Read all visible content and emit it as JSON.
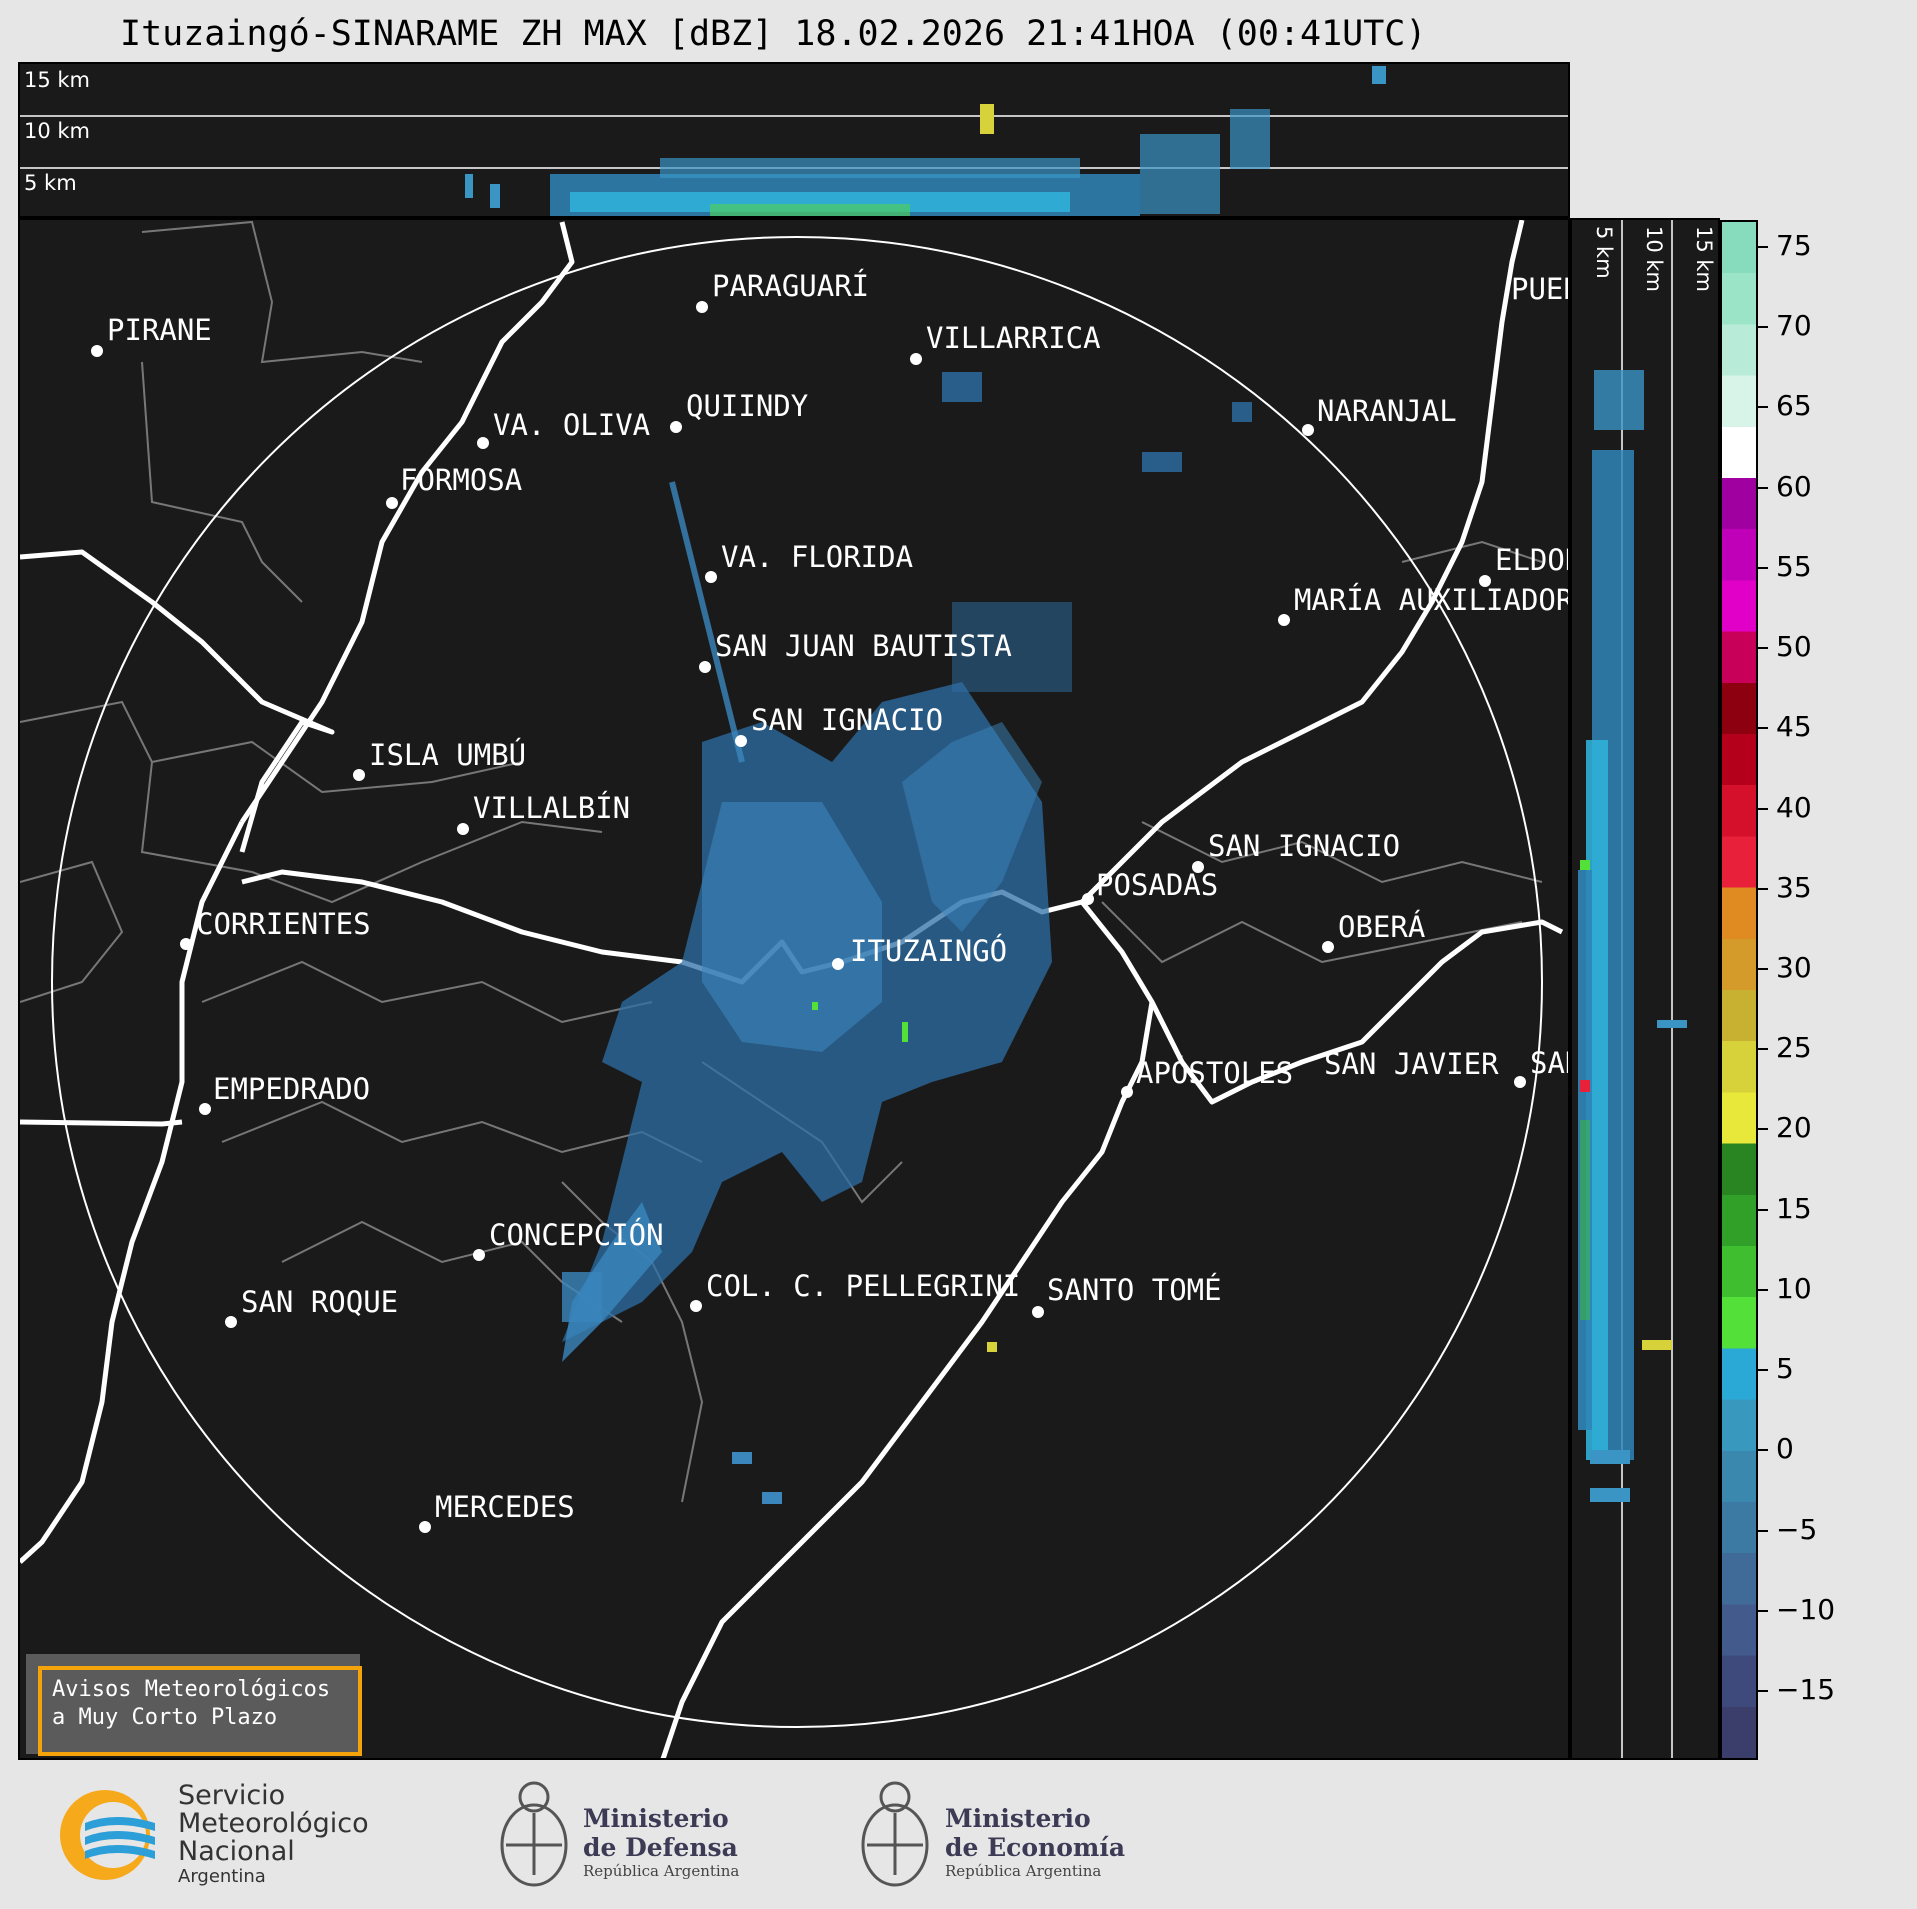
{
  "title": "Ituzaingó-SINARAME ZH MAX [dBZ] 18.02.2026 21:41HOA (00:41UTC)",
  "top_panel": {
    "height_labels": [
      "15 km",
      "10 km",
      "5 km"
    ]
  },
  "side_panel": {
    "height_labels": [
      "5 km",
      "10 km",
      "15 km"
    ]
  },
  "cities": [
    {
      "name": "PIRANE"
    },
    {
      "name": "PARAGUARÍ"
    },
    {
      "name": "VILLARRICA"
    },
    {
      "name": "QUIINDY"
    },
    {
      "name": "VA. OLIVA"
    },
    {
      "name": "FORMOSA"
    },
    {
      "name": "NARANJAL"
    },
    {
      "name": "VA. FLORIDA"
    },
    {
      "name": "ELDORADO"
    },
    {
      "name": "MARÍA AUXILIADORA"
    },
    {
      "name": "SAN JUAN BAUTISTA"
    },
    {
      "name": "SAN IGNACIO"
    },
    {
      "name": "ISLA UMBÚ"
    },
    {
      "name": "VILLALBÍN"
    },
    {
      "name": "SAN IGNACIO"
    },
    {
      "name": "POSADAS"
    },
    {
      "name": "CORRIENTES"
    },
    {
      "name": "ITUZAINGÓ"
    },
    {
      "name": "OBERÁ"
    },
    {
      "name": "EMPEDRADO"
    },
    {
      "name": "APÓSTOLES"
    },
    {
      "name": "SAN JAVIER"
    },
    {
      "name": "SAN"
    },
    {
      "name": "CONCEPCIÓN"
    },
    {
      "name": "COL. C. PELLEGRINI"
    },
    {
      "name": "SANTO TOMÉ"
    },
    {
      "name": "SAN ROQUE"
    },
    {
      "name": "MERCEDES"
    },
    {
      "name": "PUERTO"
    }
  ],
  "colorbar": {
    "unit": "dBZ",
    "ticks": [
      "75",
      "70",
      "65",
      "60",
      "55",
      "50",
      "45",
      "40",
      "35",
      "30",
      "25",
      "20",
      "15",
      "10",
      "5",
      "0",
      "−5",
      "−10",
      "−15"
    ],
    "colors": [
      "#3b3d6b",
      "#3f4a7c",
      "#435a8c",
      "#406a98",
      "#3c7aa3",
      "#3a88ae",
      "#3898bd",
      "#2aa8d6",
      "#52e039",
      "#3fbf2f",
      "#31a029",
      "#288522",
      "#e8e83a",
      "#d8d23a",
      "#c8b030",
      "#d49a2a",
      "#e08a22",
      "#e8203a",
      "#d4102a",
      "#b4001a",
      "#8c0010",
      "#c8005a",
      "#e000c8",
      "#c000b8",
      "#a000a0",
      "#ffffff",
      "#d8f4e8",
      "#b8ecd8",
      "#9ce4c8",
      "#86dcbc"
    ]
  },
  "warning": {
    "line1": "Avisos Meteorológicos",
    "line2": "a Muy Corto Plazo"
  },
  "logos": {
    "smn": {
      "line1": "Servicio",
      "line2": "Meteorológico",
      "line3": "Nacional",
      "line4": "Argentina"
    },
    "defensa": {
      "line1": "Ministerio",
      "line2": "de Defensa",
      "line3": "República Argentina"
    },
    "economia": {
      "line1": "Ministerio",
      "line2": "de Economía",
      "line3": "República Argentina"
    }
  }
}
